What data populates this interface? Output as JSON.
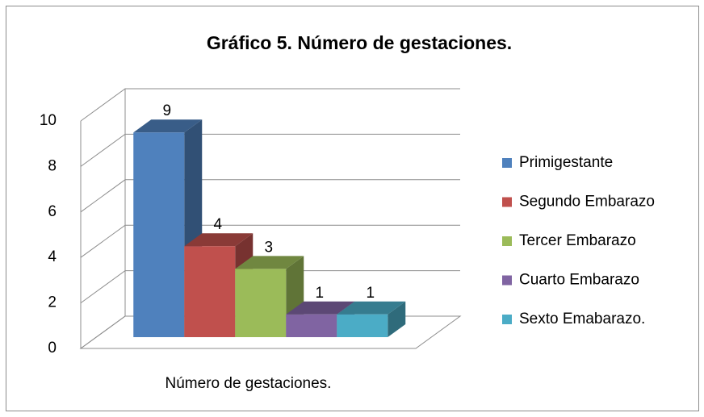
{
  "chart_data": {
    "type": "bar3d",
    "title": "Gráfico 5. Número de gestaciones.",
    "categories": [
      "Número de gestaciones."
    ],
    "series": [
      {
        "name": "Primigestante",
        "color": "#4f81bd",
        "values": [
          9
        ]
      },
      {
        "name": "Segundo Embarazo",
        "color": "#c0504d",
        "values": [
          4
        ]
      },
      {
        "name": "Tercer Embarazo",
        "color": "#9bbb59",
        "values": [
          3
        ]
      },
      {
        "name": "Cuarto Embarazo",
        "color": "#8064a2",
        "values": [
          1
        ]
      },
      {
        "name": "Sexto Emabarazo.",
        "color": "#4bacc6",
        "values": [
          1
        ]
      }
    ],
    "ylim": [
      0,
      10
    ],
    "yticks": [
      0,
      2,
      4,
      6,
      8,
      10
    ],
    "grid": true,
    "legend": "right"
  }
}
